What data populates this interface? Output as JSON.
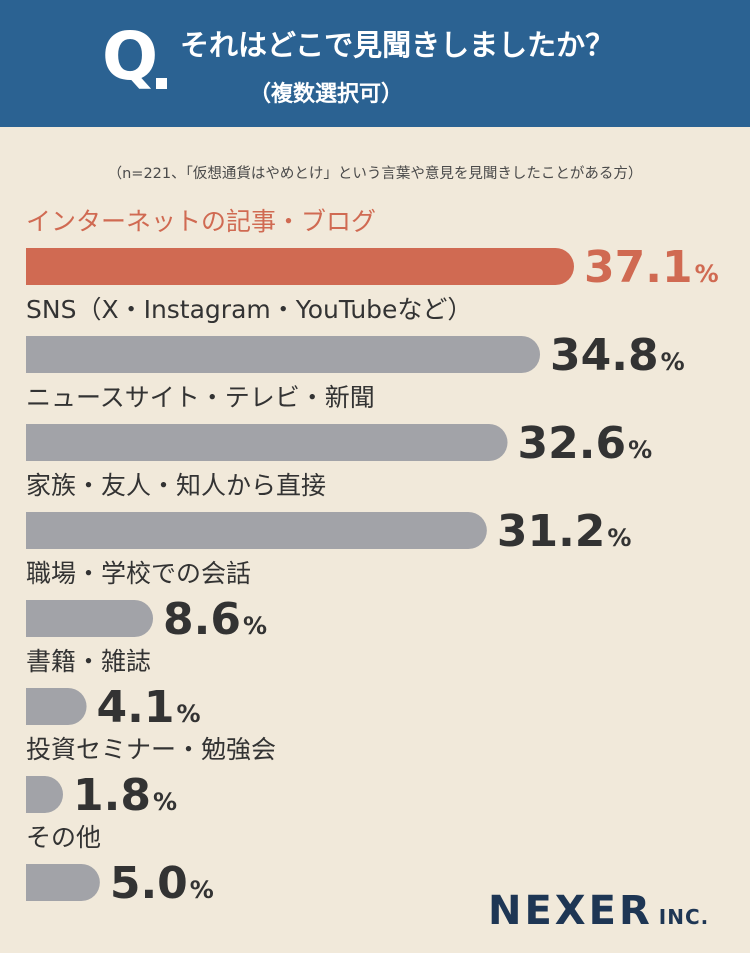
{
  "header": {
    "q_label": "Q",
    "question": "それはどこで見聞きしましたか？",
    "subquestion": "（複数選択可）"
  },
  "note": "（n=221、「仮想通貨はやめとけ」という言葉や意見を見聞きしたことがある方）",
  "logo": {
    "main": "NEXER",
    "sub": "INC."
  },
  "colors": {
    "highlight": "#d06a52",
    "bar": "#a2a3a8",
    "value_text": "#333333",
    "label_text": "#333333"
  },
  "chart_data": {
    "type": "bar",
    "orientation": "horizontal",
    "categories": [
      "インターネットの記事・ブログ",
      "SNS（X・Instagram・YouTubeなど）",
      "ニュースサイト・テレビ・新聞",
      "家族・友人・知人から直接",
      "職場・学校での会話",
      "書籍・雑誌",
      "投資セミナー・勉強会",
      "その他"
    ],
    "values": [
      37.1,
      34.8,
      32.6,
      31.2,
      8.6,
      4.1,
      1.8,
      5.0
    ],
    "value_labels": [
      "37.1",
      "34.8",
      "32.6",
      "31.2",
      "8.6",
      "4.1",
      "1.8",
      "5.0"
    ],
    "unit": "%",
    "highlight_index": 0
  }
}
